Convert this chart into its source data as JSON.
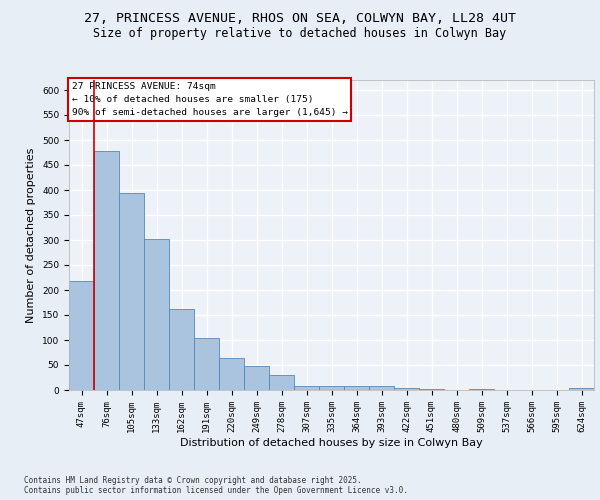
{
  "title1": "27, PRINCESS AVENUE, RHOS ON SEA, COLWYN BAY, LL28 4UT",
  "title2": "Size of property relative to detached houses in Colwyn Bay",
  "xlabel": "Distribution of detached houses by size in Colwyn Bay",
  "ylabel": "Number of detached properties",
  "categories": [
    "47sqm",
    "76sqm",
    "105sqm",
    "133sqm",
    "162sqm",
    "191sqm",
    "220sqm",
    "249sqm",
    "278sqm",
    "307sqm",
    "335sqm",
    "364sqm",
    "393sqm",
    "422sqm",
    "451sqm",
    "480sqm",
    "509sqm",
    "537sqm",
    "566sqm",
    "595sqm",
    "624sqm"
  ],
  "values": [
    218,
    478,
    395,
    302,
    163,
    105,
    65,
    48,
    31,
    9,
    9,
    9,
    9,
    5,
    3,
    0,
    3,
    0,
    0,
    0,
    5
  ],
  "bar_color": "#aac4e0",
  "bar_edge_color": "#5588bb",
  "annotation_text": "27 PRINCESS AVENUE: 74sqm\n← 10% of detached houses are smaller (175)\n90% of semi-detached houses are larger (1,645) →",
  "annotation_box_color": "#ffffff",
  "annotation_box_edge_color": "#cc0000",
  "footer": "Contains HM Land Registry data © Crown copyright and database right 2025.\nContains public sector information licensed under the Open Government Licence v3.0.",
  "ylim": [
    0,
    620
  ],
  "yticks": [
    0,
    50,
    100,
    150,
    200,
    250,
    300,
    350,
    400,
    450,
    500,
    550,
    600
  ],
  "bg_color": "#e8eef5",
  "plot_bg_color": "#edf2f8",
  "grid_color": "#ffffff",
  "title_fontsize": 9.5,
  "subtitle_fontsize": 8.5,
  "tick_fontsize": 6.5,
  "label_fontsize": 8,
  "footer_fontsize": 5.5
}
